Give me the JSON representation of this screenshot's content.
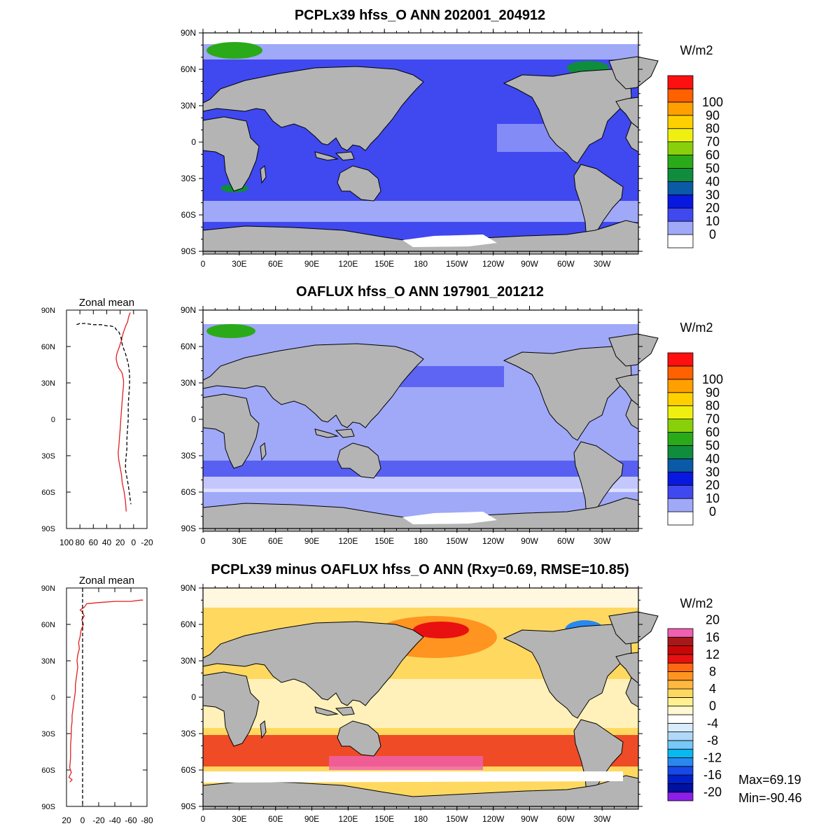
{
  "panels": [
    {
      "id": "model",
      "title": "PCPLx39 hfss_O ANN 202001_204912",
      "units": "W/m2",
      "colorbar": {
        "colors": [
          "#ffffff",
          "#a0a8f8",
          "#4048f0",
          "#0818e0",
          "#0a5aa8",
          "#0f8c3c",
          "#2aaa18",
          "#8ad00a",
          "#f0f010",
          "#ffd000",
          "#ffa000",
          "#ff6000",
          "#ff1010"
        ],
        "labels": [
          "0",
          "10",
          "20",
          "30",
          "40",
          "50",
          "60",
          "70",
          "80",
          "90",
          "100"
        ]
      },
      "zonal_mean": null
    },
    {
      "id": "obs",
      "title": "OAFLUX hfss_O ANN 197901_201212",
      "units": "W/m2",
      "colorbar": {
        "colors": [
          "#ffffff",
          "#a0a8f8",
          "#4048f0",
          "#0818e0",
          "#0a5aa8",
          "#0f8c3c",
          "#2aaa18",
          "#8ad00a",
          "#f0f010",
          "#ffd000",
          "#ffa000",
          "#ff6000",
          "#ff1010"
        ],
        "labels": [
          "0",
          "10",
          "20",
          "30",
          "40",
          "50",
          "60",
          "70",
          "80",
          "90",
          "100"
        ]
      },
      "zonal_mean": {
        "title": "Zonal mean",
        "x_ticks": [
          "100",
          "80",
          "60",
          "40",
          "20",
          "0",
          "-20"
        ],
        "y_ticks": [
          "90N",
          "60N",
          "30N",
          "0",
          "30S",
          "60S",
          "90S"
        ],
        "series": [
          {
            "color": "#e02020",
            "dashed": false,
            "x": [
              5,
              7,
              8,
              9,
              11,
              13,
              15,
              16,
              17,
              18,
              20,
              21,
              23,
              25,
              26,
              25,
              24,
              22,
              19,
              17,
              16,
              15,
              15,
              16,
              17,
              18,
              19,
              20,
              21,
              22,
              23,
              22,
              20,
              18,
              17,
              14,
              12,
              11
            ],
            "lat": [
              88,
              85,
              83,
              80,
              78,
              75,
              72,
              70,
              68,
              65,
              62,
              60,
              57,
              54,
              50,
              47,
              45,
              42,
              40,
              38,
              35,
              32,
              28,
              22,
              15,
              8,
              0,
              -8,
              -15,
              -22,
              -28,
              -34,
              -40,
              -46,
              -52,
              -60,
              -68,
              -76
            ]
          },
          {
            "color": "#000000",
            "dashed": true,
            "x": [
              85,
              80,
              72,
              60,
              48,
              40,
              35,
              28,
              26,
              22,
              19,
              18,
              17,
              16,
              14,
              12,
              10,
              8,
              7,
              6,
              6,
              6,
              7,
              8,
              8,
              8,
              9,
              10,
              10,
              11,
              12,
              12,
              10,
              8,
              7,
              6,
              5,
              4
            ],
            "lat": [
              78,
              79,
              79,
              78,
              78,
              77,
              77,
              76,
              74,
              72,
              68,
              65,
              62,
              60,
              57,
              54,
              50,
              46,
              42,
              38,
              34,
              28,
              20,
              12,
              5,
              0,
              -8,
              -16,
              -24,
              -30,
              -36,
              -42,
              -48,
              -54,
              -58,
              -62,
              -66,
              -70
            ]
          }
        ]
      }
    },
    {
      "id": "diff",
      "title": "PCPLx39 minus OAFLUX hfss_O ANN (Rxy=0.69, RMSE=10.85)",
      "units": "W/m2",
      "colorbar": {
        "colors": [
          "#8c1ee8",
          "#0010a0",
          "#0020c8",
          "#1848e8",
          "#2888f0",
          "#08b8f0",
          "#78c8f8",
          "#b0d8f8",
          "#d8ecfc",
          "#ffffff",
          "#fff8d0",
          "#fff090",
          "#ffd860",
          "#ffb840",
          "#ff9420",
          "#ff6810",
          "#e81010",
          "#c80808",
          "#a81818",
          "#f060b0"
        ],
        "labels": [
          "-20",
          "-16",
          "-12",
          "-8",
          "-4",
          "0",
          "4",
          "8",
          "12",
          "16",
          "20"
        ]
      },
      "stats": {
        "max": "Max=69.19",
        "min": "Min=-90.46"
      },
      "zonal_mean": {
        "title": "Zonal mean",
        "x_ticks": [
          "20",
          "0",
          "-20",
          "-40",
          "-60",
          "-80"
        ],
        "y_ticks": [
          "90N",
          "60N",
          "30N",
          "0",
          "30S",
          "60S",
          "90S"
        ],
        "series": [
          {
            "color": "#e02020",
            "dashed": false,
            "x": [
              -75,
              -72,
              -60,
              -40,
              -20,
              -5,
              -2,
              3,
              0,
              -2,
              1,
              -1,
              2,
              3,
              5,
              4,
              6,
              7,
              6,
              7,
              8,
              9,
              9,
              10,
              11,
              12,
              13,
              13,
              14,
              14,
              15,
              15,
              16,
              14,
              17,
              13,
              16
            ],
            "lat": [
              80,
              80,
              79,
              79,
              78,
              77,
              74,
              72,
              70,
              67,
              64,
              60,
              55,
              50,
              45,
              40,
              35,
              30,
              25,
              20,
              15,
              10,
              5,
              0,
              -5,
              -10,
              -15,
              -20,
              -25,
              -30,
              -40,
              -50,
              -58,
              -62,
              -66,
              -68,
              -70
            ]
          },
          {
            "color": "#000000",
            "dashed": true,
            "x": [
              0,
              0
            ],
            "lat": [
              90,
              -90
            ]
          }
        ]
      }
    }
  ],
  "map": {
    "lat_ticks": [
      "90N",
      "60N",
      "30N",
      "0",
      "30S",
      "60S",
      "90S"
    ],
    "lon_ticks": [
      "0",
      "30E",
      "60E",
      "90E",
      "120E",
      "150E",
      "180",
      "150W",
      "120W",
      "90W",
      "60W",
      "30W"
    ],
    "land_color": "#b4b4b4",
    "ocean_base_model": "#4048f0",
    "ocean_base_obs": "#a0a8f8",
    "ocean_base_diff": "#ffd860"
  }
}
